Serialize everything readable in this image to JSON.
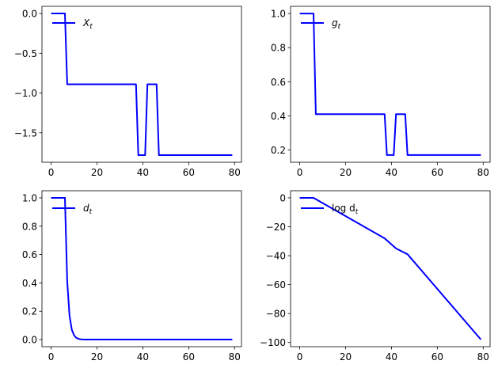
{
  "chart_data": [
    {
      "type": "line",
      "series": [
        {
          "name": "X_t",
          "color": "#0000ff"
        }
      ],
      "x": [
        0,
        1,
        2,
        3,
        4,
        5,
        6,
        7,
        37,
        38,
        39,
        40,
        41,
        42,
        43,
        44,
        45,
        46,
        47,
        79
      ],
      "y": [
        0,
        0,
        0,
        0,
        0,
        0,
        0,
        -0.89,
        -0.89,
        -1.78,
        -1.78,
        -1.78,
        -1.78,
        -0.89,
        -0.89,
        -0.89,
        -0.89,
        -0.89,
        -1.78,
        -1.78
      ],
      "legend_name": "X",
      "legend_sub": "t",
      "legend_position": "upper-left",
      "xlim": [
        -4,
        83
      ],
      "ylim": [
        -1.87,
        0.09
      ],
      "xticks": [
        0,
        20,
        40,
        60,
        80
      ],
      "xtick_labels": [
        "0",
        "20",
        "40",
        "60",
        "80"
      ],
      "yticks": [
        0,
        -0.5,
        -1.0,
        -1.5
      ],
      "ytick_labels": [
        "0.0",
        "−0.5",
        "−1.0",
        "−1.5"
      ]
    },
    {
      "type": "line",
      "series": [
        {
          "name": "g_t",
          "color": "#0000ff"
        }
      ],
      "x": [
        0,
        1,
        2,
        3,
        4,
        5,
        6,
        7,
        37,
        38,
        39,
        40,
        41,
        42,
        43,
        44,
        45,
        46,
        47,
        79
      ],
      "y": [
        1,
        1,
        1,
        1,
        1,
        1,
        1,
        0.41,
        0.41,
        0.17,
        0.17,
        0.17,
        0.17,
        0.41,
        0.41,
        0.41,
        0.41,
        0.41,
        0.17,
        0.17
      ],
      "legend_name": "g",
      "legend_sub": "t",
      "legend_position": "upper-left",
      "xlim": [
        -4,
        83
      ],
      "ylim": [
        0.128,
        1.042
      ],
      "xticks": [
        0,
        20,
        40,
        60,
        80
      ],
      "xtick_labels": [
        "0",
        "20",
        "40",
        "60",
        "80"
      ],
      "yticks": [
        0.2,
        0.4,
        0.6,
        0.8,
        1.0
      ],
      "ytick_labels": [
        "0.2",
        "0.4",
        "0.6",
        "0.8",
        "1.0"
      ]
    },
    {
      "type": "line",
      "series": [
        {
          "name": "d_t",
          "color": "#0000ff"
        }
      ],
      "x": [
        0,
        1,
        2,
        3,
        4,
        5,
        6,
        7,
        8,
        9,
        10,
        11,
        12,
        13,
        14,
        15,
        20,
        40,
        79
      ],
      "y": [
        1,
        1,
        1,
        1,
        1,
        1,
        1,
        0.41,
        0.17,
        0.07,
        0.03,
        0.012,
        0.005,
        0.002,
        0.001,
        0,
        0,
        0,
        0
      ],
      "legend_name": "d",
      "legend_sub": "t",
      "legend_position": "upper-left",
      "xlim": [
        -4,
        83
      ],
      "ylim": [
        -0.05,
        1.05
      ],
      "xticks": [
        0,
        20,
        40,
        60,
        80
      ],
      "xtick_labels": [
        "0",
        "20",
        "40",
        "60",
        "80"
      ],
      "yticks": [
        0,
        0.2,
        0.4,
        0.6,
        0.8,
        1.0
      ],
      "ytick_labels": [
        "0.0",
        "0.2",
        "0.4",
        "0.6",
        "0.8",
        "1.0"
      ]
    },
    {
      "type": "line",
      "series": [
        {
          "name": "log d_t",
          "color": "#0000ff"
        }
      ],
      "x": [
        0,
        6,
        37,
        42,
        47,
        79
      ],
      "y": [
        0,
        0,
        -28,
        -35,
        -39,
        -98
      ],
      "legend_name": "log d",
      "legend_sub": "t",
      "legend_position": "upper-left",
      "xlim": [
        -4,
        83
      ],
      "ylim": [
        -102.9,
        4.9
      ],
      "xticks": [
        0,
        20,
        40,
        60,
        80
      ],
      "xtick_labels": [
        "0",
        "20",
        "40",
        "60",
        "80"
      ],
      "yticks": [
        0,
        -20,
        -40,
        -60,
        -80,
        -100
      ],
      "ytick_labels": [
        "0",
        "−20",
        "−40",
        "−60",
        "−80",
        "−100"
      ]
    }
  ]
}
